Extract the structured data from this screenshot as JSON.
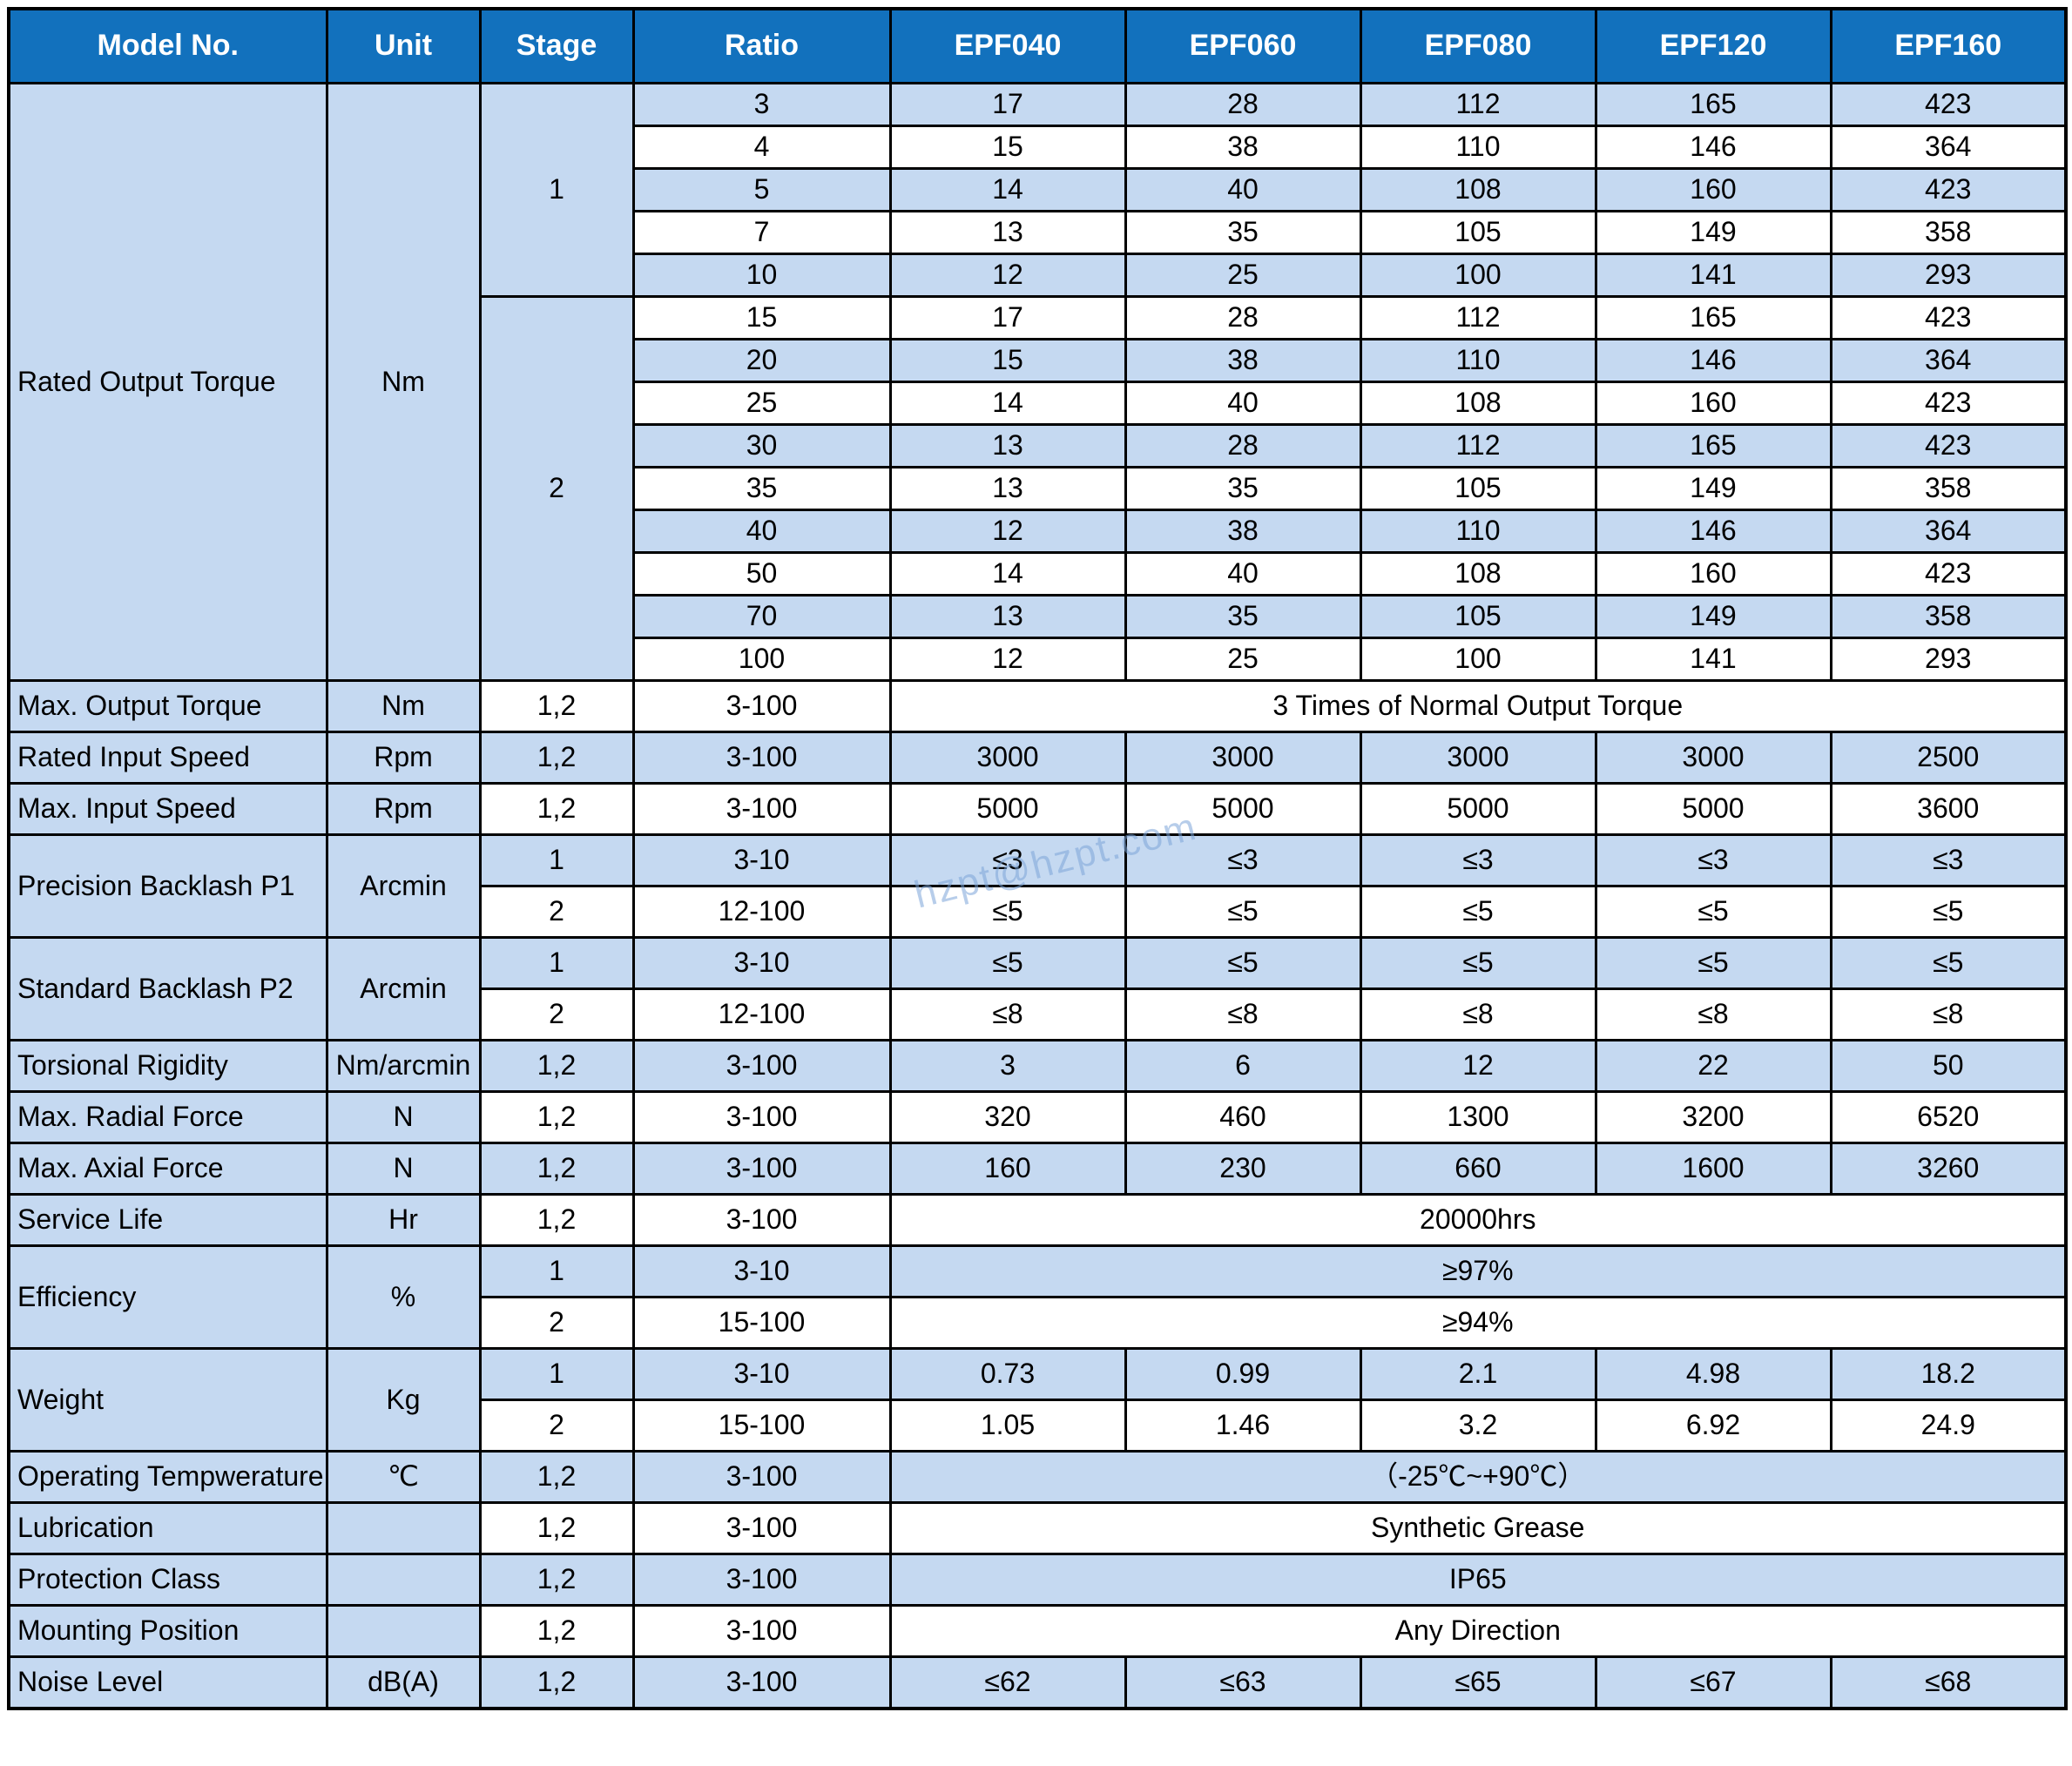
{
  "watermark": "hzpt@hzpt.com",
  "colors": {
    "header_bg": "#1271BD",
    "header_text": "#FFFFFF",
    "stripe": "#C5D9F1",
    "row_white": "#FFFFFF",
    "border": "#000000"
  },
  "header": [
    "Model No.",
    "Unit",
    "Stage",
    "Ratio",
    "EPF040",
    "EPF060",
    "EPF080",
    "EPF120",
    "EPF160"
  ],
  "torque": {
    "label": "Rated Output Torque",
    "unit": "Nm",
    "stages": [
      {
        "stage": "1",
        "rows": [
          {
            "ratio": "3",
            "v": [
              "17",
              "28",
              "112",
              "165",
              "423"
            ]
          },
          {
            "ratio": "4",
            "v": [
              "15",
              "38",
              "110",
              "146",
              "364"
            ]
          },
          {
            "ratio": "5",
            "v": [
              "14",
              "40",
              "108",
              "160",
              "423"
            ]
          },
          {
            "ratio": "7",
            "v": [
              "13",
              "35",
              "105",
              "149",
              "358"
            ]
          },
          {
            "ratio": "10",
            "v": [
              "12",
              "25",
              "100",
              "141",
              "293"
            ]
          }
        ]
      },
      {
        "stage": "2",
        "rows": [
          {
            "ratio": "15",
            "v": [
              "17",
              "28",
              "112",
              "165",
              "423"
            ]
          },
          {
            "ratio": "20",
            "v": [
              "15",
              "38",
              "110",
              "146",
              "364"
            ]
          },
          {
            "ratio": "25",
            "v": [
              "14",
              "40",
              "108",
              "160",
              "423"
            ]
          },
          {
            "ratio": "30",
            "v": [
              "13",
              "28",
              "112",
              "165",
              "423"
            ]
          },
          {
            "ratio": "35",
            "v": [
              "13",
              "35",
              "105",
              "149",
              "358"
            ]
          },
          {
            "ratio": "40",
            "v": [
              "12",
              "38",
              "110",
              "146",
              "364"
            ]
          },
          {
            "ratio": "50",
            "v": [
              "14",
              "40",
              "108",
              "160",
              "423"
            ]
          },
          {
            "ratio": "70",
            "v": [
              "13",
              "35",
              "105",
              "149",
              "358"
            ]
          },
          {
            "ratio": "100",
            "v": [
              "12",
              "25",
              "100",
              "141",
              "293"
            ]
          }
        ]
      }
    ]
  },
  "max_output": {
    "label": "Max. Output Torque",
    "unit": "Nm",
    "stage": "1,2",
    "ratio": "3-100",
    "span": "3 Times of Normal Output Torque"
  },
  "rated_input": {
    "label": "Rated Input Speed",
    "unit": "Rpm",
    "stage": "1,2",
    "ratio": "3-100",
    "v": [
      "3000",
      "3000",
      "3000",
      "3000",
      "2500"
    ]
  },
  "max_input": {
    "label": "Max. Input Speed",
    "unit": "Rpm",
    "stage": "1,2",
    "ratio": "3-100",
    "v": [
      "5000",
      "5000",
      "5000",
      "5000",
      "3600"
    ]
  },
  "p1": {
    "label": "Precision Backlash P1",
    "unit": "Arcmin",
    "sub": [
      {
        "stage": "1",
        "ratio": "3-10",
        "v": [
          "≤3",
          "≤3",
          "≤3",
          "≤3",
          "≤3"
        ]
      },
      {
        "stage": "2",
        "ratio": "12-100",
        "v": [
          "≤5",
          "≤5",
          "≤5",
          "≤5",
          "≤5"
        ]
      }
    ]
  },
  "p2": {
    "label": "Standard Backlash P2",
    "unit": "Arcmin",
    "sub": [
      {
        "stage": "1",
        "ratio": "3-10",
        "v": [
          "≤5",
          "≤5",
          "≤5",
          "≤5",
          "≤5"
        ]
      },
      {
        "stage": "2",
        "ratio": "12-100",
        "v": [
          "≤8",
          "≤8",
          "≤8",
          "≤8",
          "≤8"
        ]
      }
    ]
  },
  "torsional": {
    "label": "Torsional Rigidity",
    "unit": "Nm/arcmin",
    "stage": "1,2",
    "ratio": "3-100",
    "v": [
      "3",
      "6",
      "12",
      "22",
      "50"
    ]
  },
  "radial": {
    "label": "Max. Radial Force",
    "unit": "N",
    "stage": "1,2",
    "ratio": "3-100",
    "v": [
      "320",
      "460",
      "1300",
      "3200",
      "6520"
    ]
  },
  "axial": {
    "label": "Max. Axial Force",
    "unit": "N",
    "stage": "1,2",
    "ratio": "3-100",
    "v": [
      "160",
      "230",
      "660",
      "1600",
      "3260"
    ]
  },
  "service": {
    "label": "Service Life",
    "unit": "Hr",
    "stage": "1,2",
    "ratio": "3-100",
    "span": "20000hrs"
  },
  "efficiency": {
    "label": "Efficiency",
    "unit": "%",
    "sub": [
      {
        "stage": "1",
        "ratio": "3-10",
        "span": "≥97%"
      },
      {
        "stage": "2",
        "ratio": "15-100",
        "span": "≥94%"
      }
    ]
  },
  "weight": {
    "label": "Weight",
    "unit": "Kg",
    "sub": [
      {
        "stage": "1",
        "ratio": "3-10",
        "v": [
          "0.73",
          "0.99",
          "2.1",
          "4.98",
          "18.2"
        ]
      },
      {
        "stage": "2",
        "ratio": "15-100",
        "v": [
          "1.05",
          "1.46",
          "3.2",
          "6.92",
          "24.9"
        ]
      }
    ]
  },
  "op_temp": {
    "label": "Operating Tempwerature",
    "unit": "℃",
    "stage": "1,2",
    "ratio": "3-100",
    "span": "（-25℃~+90℃）"
  },
  "lubrication": {
    "label": "Lubrication",
    "unit": "",
    "stage": "1,2",
    "ratio": "3-100",
    "span": "Synthetic Grease"
  },
  "protection": {
    "label": "Protection Class",
    "unit": "",
    "stage": "1,2",
    "ratio": "3-100",
    "span": "IP65"
  },
  "mounting": {
    "label": "Mounting Position",
    "unit": "",
    "stage": "1,2",
    "ratio": "3-100",
    "span": "Any Direction"
  },
  "noise": {
    "label": "Noise Level",
    "unit": "dB(A)",
    "stage": "1,2",
    "ratio": "3-100",
    "v": [
      "≤62",
      "≤63",
      "≤65",
      "≤67",
      "≤68"
    ]
  }
}
